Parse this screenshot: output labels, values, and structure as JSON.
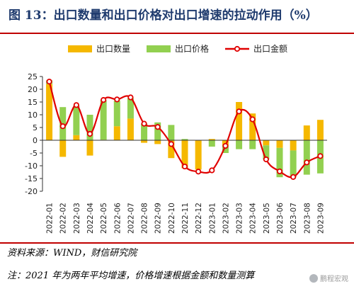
{
  "figure": {
    "title": "图 13：出口数量和出口价格对出口增速的拉动作用（%）",
    "source": "资料来源：WIND，财信研究院",
    "note": "注：2021 年为两年平均增速，价格增速根据金额和数量测算",
    "watermark": "鹏程宏观"
  },
  "colors": {
    "quantity": "#f5b800",
    "price": "#92d050",
    "amount": "#e00000",
    "title": "#1f3b6e",
    "rule": "#c00000"
  },
  "chart_data": {
    "type": "bar+line",
    "categories": [
      "2022-01",
      "2022-02",
      "2022-03",
      "2022-04",
      "2022-05",
      "2022-06",
      "2022-07",
      "2022-08",
      "2022-09",
      "2022-10",
      "2022-11",
      "2022-12",
      "2023-01",
      "2023-02",
      "2023-03",
      "2023-04",
      "2023-05",
      "2023-06",
      "2023-07",
      "2023-08",
      "2023-09"
    ],
    "series": [
      {
        "name": "出口数量",
        "type": "bar",
        "values": [
          22,
          -6.5,
          2,
          -6,
          0.2,
          5.5,
          8.5,
          -1,
          -1.5,
          -7,
          -11,
          -11.5,
          0.5,
          -2,
          15,
          10.5,
          -2,
          -3,
          -4,
          5.8,
          8
        ]
      },
      {
        "name": "出口价格",
        "type": "bar",
        "values": [
          1.5,
          13,
          11.5,
          10,
          15.5,
          10,
          8,
          6.5,
          7,
          6,
          0.5,
          0,
          -2.5,
          -3,
          -3.5,
          -3.5,
          -5.5,
          -11.5,
          -10.5,
          -13.5,
          -13
        ]
      },
      {
        "name": "出口金额",
        "type": "line",
        "values": [
          23,
          5.5,
          13.8,
          2.5,
          15.8,
          16,
          16.8,
          6.5,
          5.2,
          -1.5,
          -10.3,
          -12.3,
          -11.8,
          -2.2,
          11.3,
          8.2,
          -7.5,
          -12.2,
          -14.4,
          -8.7,
          -6.2
        ]
      }
    ],
    "yticks": [
      25,
      20,
      15,
      10,
      5,
      0,
      -5,
      -10,
      -15,
      -20
    ],
    "ylim": [
      -20,
      25
    ],
    "legend": [
      "出口数量",
      "出口价格",
      "出口金额"
    ],
    "legend_position": "top",
    "grid": false
  }
}
